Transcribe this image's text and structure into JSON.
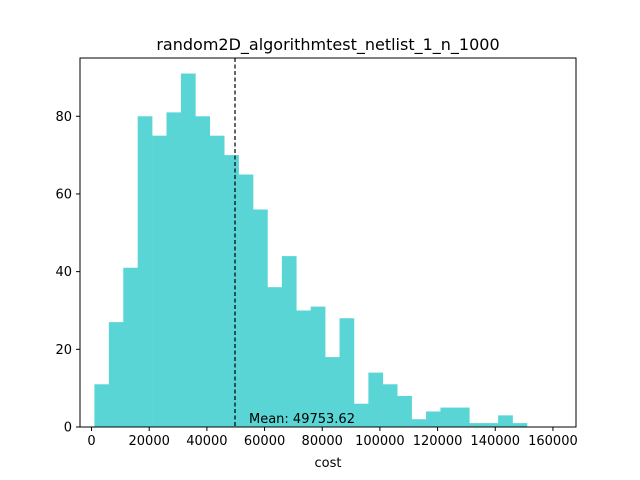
{
  "chart_data": {
    "type": "bar",
    "title": "random2D_algorithmtest_netlist_1_n_1000",
    "xlabel": "cost",
    "ylabel": "",
    "bin_width": 5000,
    "bin_start": 1000,
    "values": [
      11,
      27,
      41,
      80,
      75,
      81,
      91,
      80,
      75,
      70,
      65,
      56,
      36,
      44,
      30,
      31,
      18,
      28,
      6,
      14,
      11,
      8,
      2,
      4,
      5,
      5,
      1,
      1,
      3,
      1
    ],
    "xlim": [
      -4000,
      168000
    ],
    "ylim": [
      0,
      95
    ],
    "xticks": [
      0,
      20000,
      40000,
      60000,
      80000,
      100000,
      120000,
      140000,
      160000
    ],
    "xtick_labels": [
      "0",
      "20000",
      "40000",
      "60000",
      "80000",
      "100000",
      "120000",
      "140000",
      "160000"
    ],
    "yticks": [
      0,
      20,
      40,
      60,
      80
    ],
    "ytick_labels": [
      "0",
      "20",
      "40",
      "60",
      "80"
    ],
    "bar_color": "#5ad5d5",
    "mean": 49753.62,
    "mean_label": "Mean: 49753.62",
    "grid": false
  }
}
